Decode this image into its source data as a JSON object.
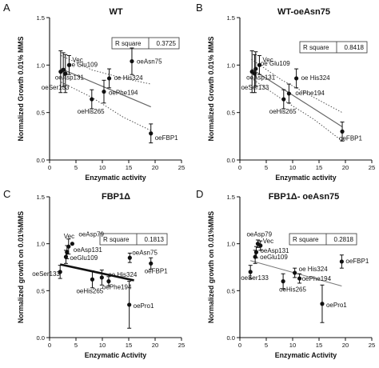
{
  "chart_data": [
    {
      "type": "scatter",
      "panel_label": "A",
      "title": "WT",
      "xlabel": "Enzymatic activity",
      "ylabel": "Normalized Growth 0.01% MMS",
      "xlim": [
        0,
        25
      ],
      "ylim": [
        0,
        1.5
      ],
      "x_ticks": [
        "0",
        "5",
        "10",
        "15",
        "20",
        "25"
      ],
      "y_ticks": [
        "0.0",
        "0.5",
        "1.0",
        "1.5"
      ],
      "r_square_label": "R square",
      "r_square_value": "0.3725",
      "fit_line": {
        "x": [
          2.2,
          19.2
        ],
        "y": [
          0.96,
          0.56
        ],
        "style": "solid"
      },
      "ci_upper": [
        [
          2.2,
          1.1
        ],
        [
          8,
          0.95
        ],
        [
          14,
          0.86
        ],
        [
          19.2,
          0.8
        ]
      ],
      "ci_lower": [
        [
          2.2,
          0.82
        ],
        [
          8,
          0.66
        ],
        [
          14,
          0.45
        ],
        [
          19.2,
          0.31
        ]
      ],
      "points": [
        {
          "label": "Vec",
          "x": 3.7,
          "y": 1.0,
          "err": 0.1
        },
        {
          "label": "oe Glu109",
          "x": 2.6,
          "y": 0.95,
          "err": 0.18
        },
        {
          "label": "oeAsp131",
          "x": 2.1,
          "y": 0.93,
          "err": 0.22
        },
        {
          "label": "oeSer133",
          "x": 3.0,
          "y": 0.91,
          "err": 0.2
        },
        {
          "label": "oe His324",
          "x": 11.3,
          "y": 0.86,
          "err": 0.1
        },
        {
          "label": "oeAsn75",
          "x": 15.6,
          "y": 1.04,
          "err": 0.14
        },
        {
          "label": "oePhe194",
          "x": 10.3,
          "y": 0.72,
          "err": 0.12
        },
        {
          "label": "oeHis265",
          "x": 8.0,
          "y": 0.64,
          "err": 0.1
        },
        {
          "label": "oeFBP1",
          "x": 19.2,
          "y": 0.28,
          "err": 0.1
        }
      ]
    },
    {
      "type": "scatter",
      "panel_label": "B",
      "title": "WT-oeAsn75",
      "xlabel": "Enzymatic activity",
      "ylabel": "Normalized Growth 0.01% MMS",
      "xlim": [
        0,
        25
      ],
      "ylim": [
        0,
        1.5
      ],
      "x_ticks": [
        "0",
        "5",
        "10",
        "15",
        "20",
        "25"
      ],
      "y_ticks": [
        "0.0",
        "0.5",
        "1.0",
        "1.5"
      ],
      "r_square_label": "R square",
      "r_square_value": "0.8418",
      "fit_line": {
        "x": [
          2.2,
          19.4
        ],
        "y": [
          0.96,
          0.35
        ],
        "style": "solid"
      },
      "ci_upper": [
        [
          2.2,
          1.06
        ],
        [
          8,
          0.84
        ],
        [
          14,
          0.66
        ],
        [
          19.4,
          0.5
        ]
      ],
      "ci_lower": [
        [
          2.2,
          0.86
        ],
        [
          8,
          0.64
        ],
        [
          14,
          0.43
        ],
        [
          19.4,
          0.2
        ]
      ],
      "points": [
        {
          "label": "Vec",
          "x": 3.7,
          "y": 1.0,
          "err": 0.1
        },
        {
          "label": "oe Glu109",
          "x": 3.0,
          "y": 0.96,
          "err": 0.18
        },
        {
          "label": "oeAsp131",
          "x": 2.3,
          "y": 0.93,
          "err": 0.22
        },
        {
          "label": "oeSer133",
          "x": 2.8,
          "y": 0.91,
          "err": 0.2
        },
        {
          "label": "oe His324",
          "x": 10.7,
          "y": 0.86,
          "err": 0.1
        },
        {
          "label": "oePhe194",
          "x": 9.3,
          "y": 0.7,
          "err": 0.1
        },
        {
          "label": "oeHis265",
          "x": 8.3,
          "y": 0.64,
          "err": 0.1
        },
        {
          "label": "oeFBP1",
          "x": 19.4,
          "y": 0.3,
          "err": 0.1
        }
      ]
    },
    {
      "type": "scatter",
      "panel_label": "C",
      "title": "FBP1Δ",
      "xlabel": "Enzymatic Activity",
      "ylabel": "Normalized growth on 0.01%MMS",
      "xlim": [
        0,
        25
      ],
      "ylim": [
        0,
        1.5
      ],
      "x_ticks": [
        "0",
        "5",
        "10",
        "15",
        "20",
        "25"
      ],
      "y_ticks": [
        "0.0",
        "0.5",
        "1.0",
        "1.5"
      ],
      "r_square_label": "R square",
      "r_square_value": "0.1813",
      "fit_line": {
        "x": [
          2.0,
          16.0
        ],
        "y": [
          0.78,
          0.61
        ],
        "style": "bold"
      },
      "points": [
        {
          "label": "oeAsp79",
          "x": 4.3,
          "y": 1.0,
          "err": 0
        },
        {
          "label": "Vec",
          "x": 3.6,
          "y": 0.97,
          "err": 0.08
        },
        {
          "label": "oeAsp131",
          "x": 3.3,
          "y": 0.91,
          "err": 0.07
        },
        {
          "label": "oeGlu109",
          "x": 3.1,
          "y": 0.86,
          "err": 0.07
        },
        {
          "label": "oeSer133",
          "x": 2.0,
          "y": 0.7,
          "err": 0.07
        },
        {
          "label": "oe His324",
          "x": 9.9,
          "y": 0.64,
          "err": 0.08
        },
        {
          "label": "oePhe194",
          "x": 11.2,
          "y": 0.6,
          "err": 0.05
        },
        {
          "label": "oeHis265",
          "x": 8.1,
          "y": 0.62,
          "err": 0.09
        },
        {
          "label": "oeAsn75",
          "x": 15.2,
          "y": 0.85,
          "err": 0.05
        },
        {
          "label": "oeFBP1",
          "x": 19.2,
          "y": 0.79,
          "err": 0.06
        },
        {
          "label": "oePro1",
          "x": 15.1,
          "y": 0.35,
          "err": 0.25
        }
      ]
    },
    {
      "type": "scatter",
      "panel_label": "D",
      "title": "FBP1Δ- oeAsn75",
      "xlabel": "Enzymatic Activity",
      "ylabel": "Normalized growth on 0.01%MMS",
      "xlim": [
        0,
        25
      ],
      "ylim": [
        0,
        1.5
      ],
      "x_ticks": [
        "0",
        "5",
        "10",
        "15",
        "20",
        "25"
      ],
      "y_ticks": [
        "0.0",
        "0.5",
        "1.0",
        "1.5"
      ],
      "r_square_label": "R square",
      "r_square_value": "0.2818",
      "fit_line": {
        "x": [
          2.0,
          19.3
        ],
        "y": [
          0.82,
          0.55
        ],
        "style": "faint"
      },
      "points": [
        {
          "label": "oeAsp79",
          "x": 3.4,
          "y": 1.0,
          "err": 0.04
        },
        {
          "label": "Vec",
          "x": 3.9,
          "y": 0.98,
          "err": 0.05
        },
        {
          "label": "oeAsp131",
          "x": 3.1,
          "y": 0.91,
          "err": 0.06
        },
        {
          "label": "oeGlu109",
          "x": 2.9,
          "y": 0.86,
          "err": 0.07
        },
        {
          "label": "oeSer133",
          "x": 2.0,
          "y": 0.7,
          "err": 0.07
        },
        {
          "label": "oe His324",
          "x": 10.4,
          "y": 0.69,
          "err": 0.05
        },
        {
          "label": "oePhe194",
          "x": 11.3,
          "y": 0.63,
          "err": 0.05
        },
        {
          "label": "oeHis265",
          "x": 8.2,
          "y": 0.6,
          "err": 0.08
        },
        {
          "label": "oeFBP1",
          "x": 19.3,
          "y": 0.81,
          "err": 0.07
        },
        {
          "label": "oePro1",
          "x": 15.6,
          "y": 0.36,
          "err": 0.2
        }
      ]
    }
  ]
}
